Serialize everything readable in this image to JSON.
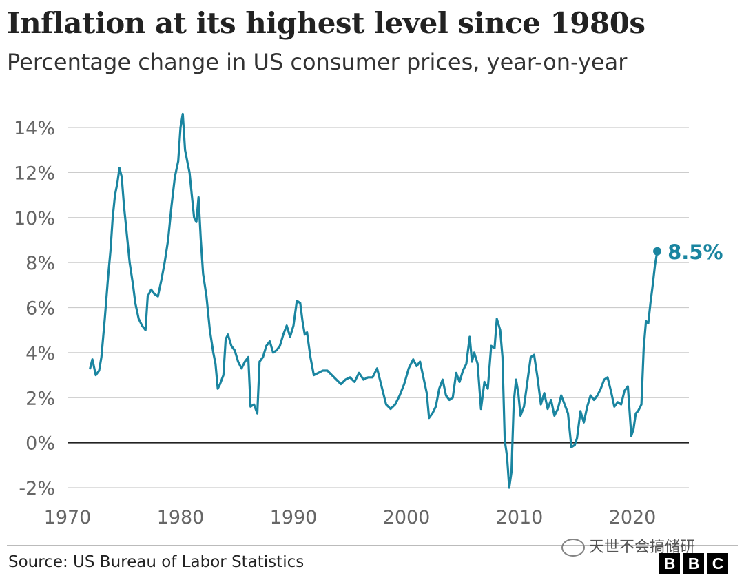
{
  "header": {
    "title": "Inflation at its highest level since 1980s",
    "subtitle": "Percentage change in US consumer prices, year-on-year"
  },
  "footer": {
    "source": "Source: US Bureau of Labor Statistics",
    "watermark": "天世不会搞储研",
    "logo": [
      "B",
      "B",
      "C"
    ]
  },
  "colors": {
    "series": "#1a85a0",
    "grid": "#cccccc",
    "zero_line": "#222222",
    "tick_text": "#666666"
  },
  "chart_data": {
    "type": "line",
    "title": "Inflation at its highest level since 1980s",
    "subtitle": "Percentage change in US consumer prices, year-on-year",
    "xlabel": "",
    "ylabel": "",
    "xlim": [
      1970,
      2025
    ],
    "ylim": [
      -2,
      14
    ],
    "x_ticks": [
      1970,
      1980,
      1990,
      2000,
      2010,
      2020
    ],
    "x_tick_labels": [
      "1970",
      "1980",
      "1990",
      "2000",
      "2010",
      "2020"
    ],
    "y_ticks": [
      -2,
      0,
      2,
      4,
      6,
      8,
      10,
      12,
      14
    ],
    "y_tick_labels": [
      "-2%",
      "0%",
      "2%",
      "4%",
      "6%",
      "8%",
      "10%",
      "12%",
      "14%"
    ],
    "grid": "horizontal",
    "legend": "none",
    "end_label": "8.5%",
    "series": [
      {
        "x": [
          1972.0,
          1972.2,
          1972.5,
          1972.8,
          1973.0,
          1973.3,
          1973.6,
          1973.8,
          1974.0,
          1974.2,
          1974.4,
          1974.6,
          1974.8,
          1975.0,
          1975.2,
          1975.5,
          1975.8,
          1976.0,
          1976.3,
          1976.6,
          1976.9,
          1977.1,
          1977.4,
          1977.7,
          1978.0,
          1978.3,
          1978.6,
          1978.9,
          1979.2,
          1979.5,
          1979.8,
          1980.0,
          1980.2,
          1980.4,
          1980.6,
          1980.8,
          1981.0,
          1981.2,
          1981.4,
          1981.6,
          1981.8,
          1982.0,
          1982.3,
          1982.6,
          1982.9,
          1983.1,
          1983.3,
          1983.5,
          1983.8,
          1984.0,
          1984.2,
          1984.5,
          1984.8,
          1985.1,
          1985.4,
          1985.7,
          1986.0,
          1986.2,
          1986.5,
          1986.8,
          1987.0,
          1987.3,
          1987.6,
          1987.9,
          1988.2,
          1988.5,
          1988.8,
          1989.1,
          1989.4,
          1989.7,
          1990.0,
          1990.3,
          1990.6,
          1990.8,
          1991.0,
          1991.2,
          1991.5,
          1991.8,
          1992.2,
          1992.6,
          1993.0,
          1993.4,
          1993.8,
          1994.2,
          1994.6,
          1995.0,
          1995.4,
          1995.8,
          1996.2,
          1996.6,
          1997.0,
          1997.4,
          1997.8,
          1998.2,
          1998.6,
          1999.0,
          1999.4,
          1999.8,
          2000.2,
          2000.6,
          2000.9,
          2001.2,
          2001.5,
          2001.8,
          2002.0,
          2002.3,
          2002.6,
          2002.9,
          2003.2,
          2003.5,
          2003.8,
          2004.1,
          2004.4,
          2004.7,
          2005.0,
          2005.3,
          2005.6,
          2005.8,
          2006.0,
          2006.3,
          2006.6,
          2006.9,
          2007.2,
          2007.5,
          2007.8,
          2008.0,
          2008.3,
          2008.5,
          2008.7,
          2008.9,
          2009.1,
          2009.3,
          2009.5,
          2009.7,
          2009.9,
          2010.1,
          2010.4,
          2010.7,
          2011.0,
          2011.3,
          2011.6,
          2011.9,
          2012.2,
          2012.5,
          2012.8,
          2013.1,
          2013.4,
          2013.7,
          2014.0,
          2014.3,
          2014.6,
          2014.9,
          2015.1,
          2015.4,
          2015.7,
          2016.0,
          2016.3,
          2016.6,
          2016.9,
          2017.2,
          2017.5,
          2017.8,
          2018.1,
          2018.4,
          2018.7,
          2019.0,
          2019.3,
          2019.6,
          2019.9,
          2020.1,
          2020.3,
          2020.5,
          2020.8,
          2021.0,
          2021.2,
          2021.4,
          2021.6,
          2021.8,
          2022.0,
          2022.2
        ],
        "values": [
          3.3,
          3.7,
          3.0,
          3.2,
          3.8,
          5.5,
          7.4,
          8.5,
          10.0,
          11.0,
          11.5,
          12.2,
          11.8,
          10.5,
          9.5,
          8.0,
          7.0,
          6.2,
          5.5,
          5.2,
          5.0,
          6.5,
          6.8,
          6.6,
          6.5,
          7.2,
          8.0,
          9.0,
          10.5,
          11.8,
          12.5,
          14.0,
          14.6,
          13.0,
          12.5,
          12.0,
          11.0,
          10.0,
          9.8,
          10.9,
          9.0,
          7.5,
          6.5,
          5.0,
          4.0,
          3.5,
          2.4,
          2.6,
          3.0,
          4.6,
          4.8,
          4.3,
          4.1,
          3.6,
          3.3,
          3.6,
          3.8,
          1.6,
          1.7,
          1.3,
          3.6,
          3.8,
          4.3,
          4.5,
          4.0,
          4.1,
          4.3,
          4.8,
          5.2,
          4.7,
          5.2,
          6.3,
          6.2,
          5.4,
          4.8,
          4.9,
          3.8,
          3.0,
          3.1,
          3.2,
          3.2,
          3.0,
          2.8,
          2.6,
          2.8,
          2.9,
          2.7,
          3.1,
          2.8,
          2.9,
          2.9,
          3.3,
          2.5,
          1.7,
          1.5,
          1.7,
          2.1,
          2.6,
          3.3,
          3.7,
          3.4,
          3.6,
          2.9,
          2.2,
          1.1,
          1.3,
          1.6,
          2.4,
          2.8,
          2.1,
          1.9,
          2.0,
          3.1,
          2.7,
          3.2,
          3.5,
          4.7,
          3.6,
          4.0,
          3.5,
          1.5,
          2.7,
          2.4,
          4.3,
          4.2,
          5.5,
          5.0,
          3.8,
          0.1,
          -0.6,
          -2.0,
          -1.3,
          1.8,
          2.8,
          2.2,
          1.2,
          1.6,
          2.7,
          3.8,
          3.9,
          2.9,
          1.7,
          2.2,
          1.5,
          1.9,
          1.2,
          1.5,
          2.1,
          1.7,
          1.3,
          -0.2,
          -0.1,
          0.2,
          1.4,
          0.9,
          1.6,
          2.1,
          1.9,
          2.1,
          2.4,
          2.8,
          2.9,
          2.3,
          1.6,
          1.8,
          1.7,
          2.3,
          2.5,
          0.3,
          0.6,
          1.3,
          1.4,
          1.7,
          4.2,
          5.4,
          5.3,
          6.2,
          7.0,
          7.9,
          8.5
        ]
      }
    ]
  }
}
